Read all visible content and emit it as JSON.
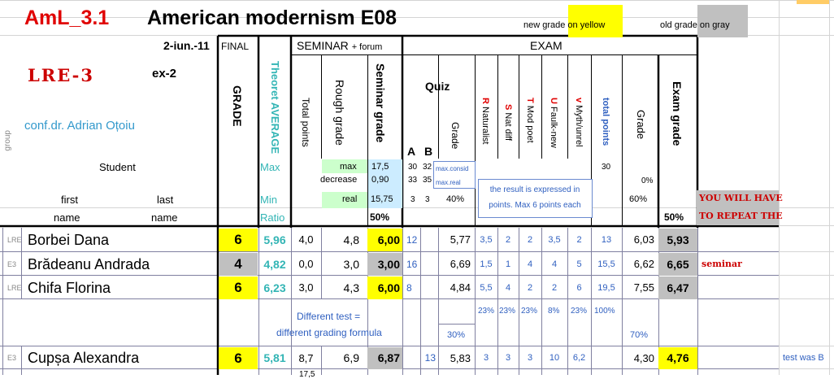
{
  "header": {
    "course_code": "AmL_3.1",
    "title": "American modernism E08",
    "legend_new": "new grade on yellow",
    "legend_old": "old grade on gray",
    "date": "2-iun.-11",
    "final_label": "FINAL",
    "seminar_label": "SEMINAR",
    "seminar_sub": "+ forum",
    "exam_label": "EXAM",
    "lre": "LRE-3",
    "ex": "ex-2",
    "teacher": "conf.dr. Adrian Oțoiu",
    "group_label": "group",
    "student_label": "Student",
    "first_label": "first",
    "last_label": "last",
    "name_label_1": "name",
    "name_label_2": "name"
  },
  "columns": {
    "grade": "GRADE",
    "theoret_avg": "Theoret AVERAGE",
    "total_points": "Total points",
    "rough_grade": "Rough grade",
    "seminar_grade": "Seminar grade",
    "quiz": "Quiz",
    "quiz_a": "A",
    "quiz_b": "B",
    "quiz_grade": "Grade",
    "r_letter": "R",
    "r_text": "Naturalist",
    "s_letter": "S",
    "s_text": "Nat diff",
    "t_letter": "T",
    "t_text": "Mod poet",
    "u_letter": "U",
    "u_text": "Faulk-new",
    "v_letter": "v",
    "v_text": "Myth/unrel",
    "total_pts_exam": "total points",
    "exam_grade_col": "Grade",
    "exam_grade": "Exam grade"
  },
  "params": {
    "max_label": "Max",
    "min_label": "Min",
    "ratio_label": "Ratio",
    "max": "max",
    "max_val": "17,5",
    "decrease": "decrease",
    "decrease_val": "0,90",
    "real": "real",
    "real_val": "15,75",
    "sem_pct": "50%",
    "quiz_a_max": "30",
    "quiz_b_max": "32",
    "quiz_a_dec": "33",
    "quiz_b_dec": "35",
    "quiz_a_min": "3",
    "quiz_b_min": "3",
    "quiz_pct": "40%",
    "max_consid": "max.consid",
    "max_real": "max.real",
    "note": "the result is expressed in points. Max 6 points each",
    "exam_total_max": "30",
    "exam_0": "0%",
    "exam_60": "60%",
    "exam_pct": "50%",
    "repeat_1": "YOU WILL HAVE",
    "repeat_2": "TO REPEAT THE"
  },
  "rows": [
    {
      "group": "LRE",
      "name": "Borbei Dana",
      "grade": "6",
      "avg": "5,96",
      "total": "4,0",
      "rough": "4,8",
      "sem": "6,00",
      "quiz_a": "12",
      "quiz_b": "",
      "quiz_grade": "5,77",
      "r": "3,5",
      "s": "2",
      "t": "2",
      "u": "3,5",
      "v": "2",
      "tot": "13",
      "egrade": "6,03",
      "exam": "5,93",
      "note": ""
    },
    {
      "group": "E3",
      "name": "Brădeanu Andrada",
      "grade": "4",
      "avg": "4,82",
      "total": "0,0",
      "rough": "3,0",
      "sem": "3,00",
      "quiz_a": "16",
      "quiz_b": "",
      "quiz_grade": "6,69",
      "r": "1,5",
      "s": "1",
      "t": "4",
      "u": "4",
      "v": "5",
      "tot": "15,5",
      "egrade": "6,62",
      "exam": "6,65",
      "note": "seminar"
    },
    {
      "group": "LRE",
      "name": "Chifa Florina",
      "grade": "6",
      "avg": "6,23",
      "total": "3,0",
      "rough": "4,3",
      "sem": "6,00",
      "quiz_a": "8",
      "quiz_b": "",
      "quiz_grade": "4,84",
      "r": "5,5",
      "s": "4",
      "t": "2",
      "u": "2",
      "v": "6",
      "tot": "19,5",
      "egrade": "7,55",
      "exam": "6,47",
      "note": ""
    }
  ],
  "diff": {
    "line1": "Different test =",
    "line2": "different grading formula",
    "p1": "23%",
    "p2": "23%",
    "p3": "23%",
    "p4": "8%",
    "p5": "23%",
    "p6": "100%",
    "quiz_pct": "30%",
    "exam_pct": "70%"
  },
  "row4": {
    "group": "E3",
    "name": "Cupșa Alexandra",
    "grade": "6",
    "avg": "5,81",
    "total": "8,7",
    "rough": "6,9",
    "sem": "6,87",
    "quiz_a": "",
    "quiz_b": "13",
    "quiz_grade": "5,83",
    "r": "3",
    "s": "3",
    "t": "3",
    "u": "10",
    "v": "6,2",
    "tot": "",
    "egrade": "4,30",
    "exam": "4,76",
    "note": "test was B"
  },
  "bottom_partial": "17,5"
}
